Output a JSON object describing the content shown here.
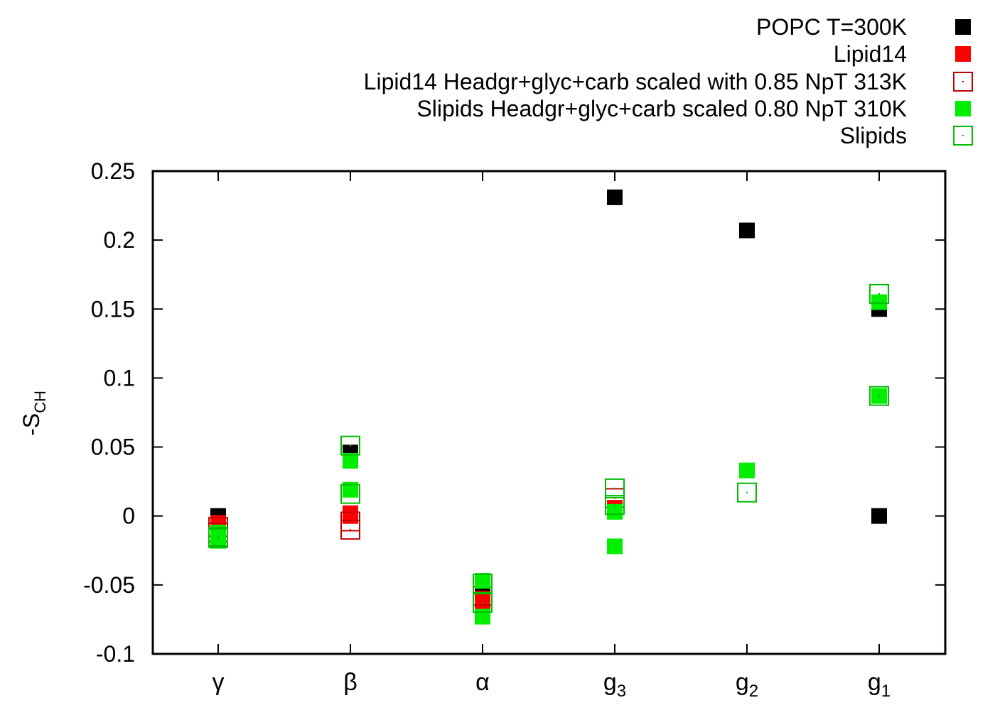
{
  "chart_data": {
    "type": "scatter",
    "title": "",
    "xlabel": "",
    "ylabel": "-S",
    "ylabel_sub": "CH",
    "ylim": [
      -0.1,
      0.25
    ],
    "yticks": [
      -0.1,
      -0.05,
      0,
      0.05,
      0.1,
      0.15,
      0.2,
      0.25
    ],
    "ytick_labels": [
      "-0.1",
      "-0.05",
      "0",
      "0.05",
      "0.1",
      "0.15",
      "0.2",
      "0.25"
    ],
    "grid": false,
    "legend_position": "top-right, above plot",
    "categories": [
      {
        "main": "γ",
        "sub": ""
      },
      {
        "main": "β",
        "sub": ""
      },
      {
        "main": "α",
        "sub": ""
      },
      {
        "main": "g",
        "sub": "3"
      },
      {
        "main": "g",
        "sub": "2"
      },
      {
        "main": "g",
        "sub": "1"
      }
    ],
    "series": [
      {
        "name": "POPC T=300K",
        "color": "#000000",
        "marker": "filled-square",
        "points": [
          [
            0,
            0.0
          ],
          [
            1,
            0.046
          ],
          [
            2,
            -0.057
          ],
          [
            3,
            0.231
          ],
          [
            4,
            0.207
          ],
          [
            5,
            0.15
          ],
          [
            5,
            0.0
          ]
        ]
      },
      {
        "name": "Lipid14",
        "color": "#ff0000",
        "marker": "filled-square",
        "points": [
          [
            0,
            -0.005
          ],
          [
            0,
            -0.009
          ],
          [
            1,
            0.002
          ],
          [
            1,
            0.0
          ],
          [
            2,
            -0.066
          ],
          [
            2,
            -0.06
          ],
          [
            3,
            0.006
          ]
        ]
      },
      {
        "name": "Lipid14 Headgr+glyc+carb scaled with 0.85 NpT 313K",
        "color": "#c00000",
        "marker": "open-square",
        "points": [
          [
            0,
            -0.008
          ],
          [
            0,
            -0.012
          ],
          [
            1,
            -0.004
          ],
          [
            1,
            -0.01
          ],
          [
            2,
            -0.063
          ],
          [
            2,
            -0.058
          ],
          [
            3,
            0.013
          ]
        ]
      },
      {
        "name": "Slipids Headgr+glyc+carb scaled 0.80 NpT 310K",
        "color": "#00ee00",
        "marker": "filled-square",
        "points": [
          [
            0,
            -0.012
          ],
          [
            0,
            -0.018
          ],
          [
            1,
            0.04
          ],
          [
            1,
            0.019
          ],
          [
            2,
            -0.047
          ],
          [
            2,
            -0.073
          ],
          [
            3,
            0.003
          ],
          [
            3,
            -0.022
          ],
          [
            4,
            0.033
          ],
          [
            5,
            0.155
          ],
          [
            5,
            0.087
          ]
        ]
      },
      {
        "name": "Slipids",
        "color": "#00bb00",
        "marker": "open-square",
        "points": [
          [
            0,
            -0.015
          ],
          [
            0,
            -0.016
          ],
          [
            1,
            0.051
          ],
          [
            1,
            0.016
          ],
          [
            2,
            -0.049
          ],
          [
            2,
            -0.063
          ],
          [
            3,
            0.02
          ],
          [
            3,
            0.008
          ],
          [
            4,
            0.017
          ],
          [
            5,
            0.161
          ],
          [
            5,
            0.087
          ]
        ]
      }
    ]
  }
}
